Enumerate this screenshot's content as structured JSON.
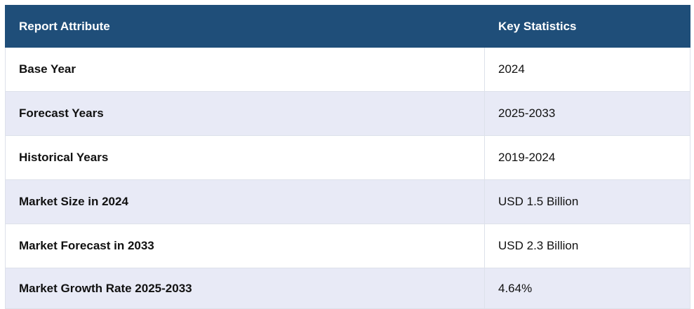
{
  "table": {
    "headers": [
      "Report Attribute",
      "Key Statistics"
    ],
    "rows": [
      {
        "attribute": "Base Year",
        "value": "2024"
      },
      {
        "attribute": "Forecast Years",
        "value": "2025-2033"
      },
      {
        "attribute": "Historical Years",
        "value": "2019-2024"
      },
      {
        "attribute": "Market Size in 2024",
        "value": "USD 1.5 Billion"
      },
      {
        "attribute": "Market Forecast in 2033",
        "value": "USD 2.3 Billion"
      },
      {
        "attribute": "Market Growth Rate 2025-2033",
        "value": "4.64%"
      }
    ]
  },
  "colors": {
    "header_bg": "#1f4e79",
    "header_text": "#ffffff",
    "stripe_bg": "#e8eaf6",
    "row_bg": "#ffffff"
  }
}
